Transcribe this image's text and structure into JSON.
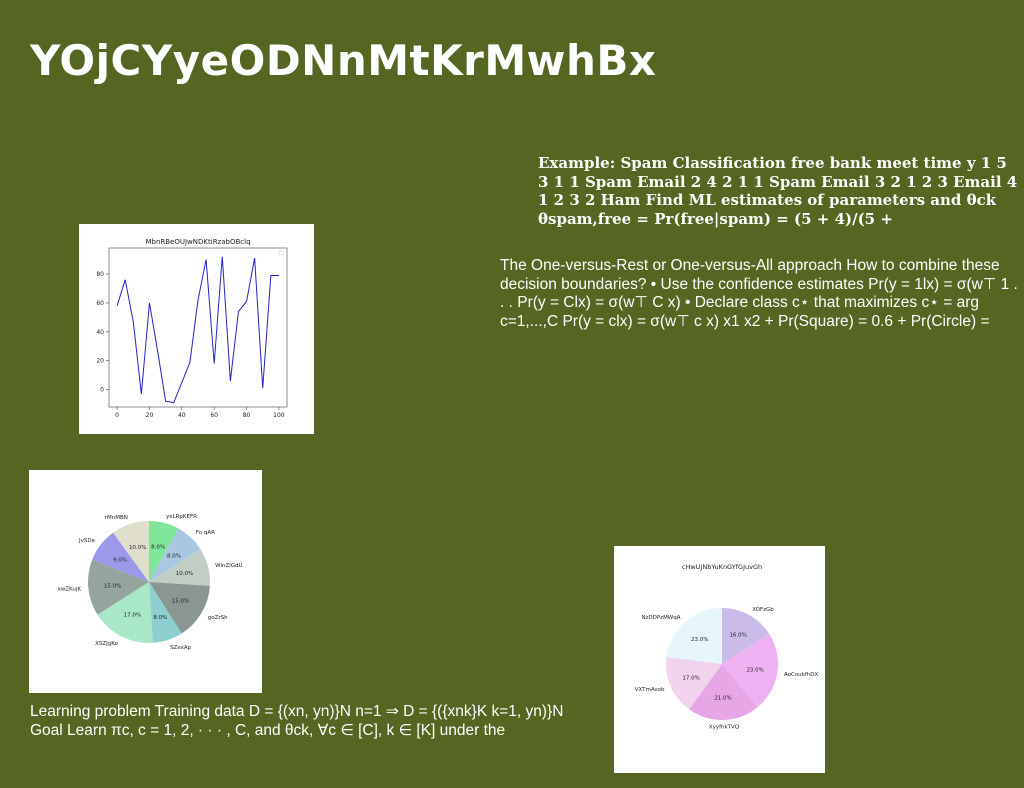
{
  "page": {
    "title": "YOjCYyeODNnMtKrMwhBx",
    "bold_block": "Example: Spam Classification free bank meet time y 1 5 3 1 1 Spam Email 2 4 2 1 1 Spam Email 3 2 1 2 3 Email 4 1 2 3 2 Ham Find ML estimates of parameters and θck θspam,free = Pr(free|spam) = (5 + 4)/(5 +",
    "para_right": "The One-versus-Rest or One-versus-All approach How to combine these decision boundaries? • Use the confidence estimates Pr(y = 1lx) = σ(w⊤ 1 . . . Pr(y = Clx) = σ(w⊤ C x) • Declare class c⋆ that maximizes c⋆ = arg c=1,...,C Pr(y = clx) = σ(w⊤ c x) x1 x2 + Pr(Square) = 0.6 + Pr(Circle) =",
    "para_bottom": "Learning problem Training data D = {(xn, yn)}N n=1 ⇒ D = {({xnk}K k=1, yn)}N Goal Learn πc, c = 1, 2, · · · , C, and θck, ∀c ∈ [C], k ∈ [K] under the"
  },
  "chart_data": [
    {
      "type": "line",
      "title": "MbnRBeOUJwNDKtiRzabOBclq",
      "x": [
        0,
        5,
        10,
        15,
        20,
        25,
        30,
        35,
        40,
        45,
        50,
        55,
        60,
        65,
        70,
        75,
        80,
        85,
        90,
        95,
        100
      ],
      "series": [
        {
          "values": [
            58,
            76,
            47,
            -3,
            60,
            27,
            -8,
            -9,
            5,
            19,
            62,
            90,
            18,
            92,
            6,
            54,
            61,
            91,
            1,
            79,
            79
          ]
        }
      ],
      "xticks": [
        0,
        20,
        40,
        60,
        80,
        100
      ],
      "yticks": [
        0,
        20,
        40,
        60,
        80
      ],
      "xlim": [
        -5,
        105
      ],
      "ylim": [
        -12,
        98
      ],
      "color": "#2222cc"
    },
    {
      "type": "pie",
      "labels": [
        "yxLRpKEFR",
        "Fo qAR",
        "WinZlGdU",
        "goZrSh",
        "SZexAp",
        "XSZJgKo",
        "xwZKujK",
        "JvSDe",
        "rMnMBN"
      ],
      "values": [
        8.0,
        8.0,
        10.0,
        15.0,
        8.0,
        17.0,
        15.0,
        9.0,
        10.0
      ],
      "pct_labels": [
        "8.0%",
        "8.0%",
        "10.0%",
        "15.0%",
        "8.0%",
        "17.0%",
        "15.0%",
        "9.0%",
        "10.0%"
      ],
      "colors": [
        "#7fe59a",
        "#a9c7e0",
        "#c2cdc6",
        "#8a9692",
        "#8fcfcf",
        "#a8e8c8",
        "#96a49f",
        "#9c99ea",
        "#dfdfcc"
      ]
    },
    {
      "type": "pie",
      "title": "cHwUJNbYuKnGYfGJuvGh",
      "labels": [
        "XOFzGb",
        "AoCoukfhDX",
        "XyyfhkTVQ",
        "VXTmAvob",
        "NzDDPzMWqA"
      ],
      "values": [
        16.0,
        23.0,
        21.0,
        17.0,
        23.0
      ],
      "pct_labels": [
        "16.0%",
        "23.0%",
        "21.0%",
        "17.0%",
        "23.0%"
      ],
      "colors": [
        "#cabbe8",
        "#eeb2f2",
        "#e7a6e6",
        "#f1d3ee",
        "#e6f6fb"
      ]
    }
  ]
}
